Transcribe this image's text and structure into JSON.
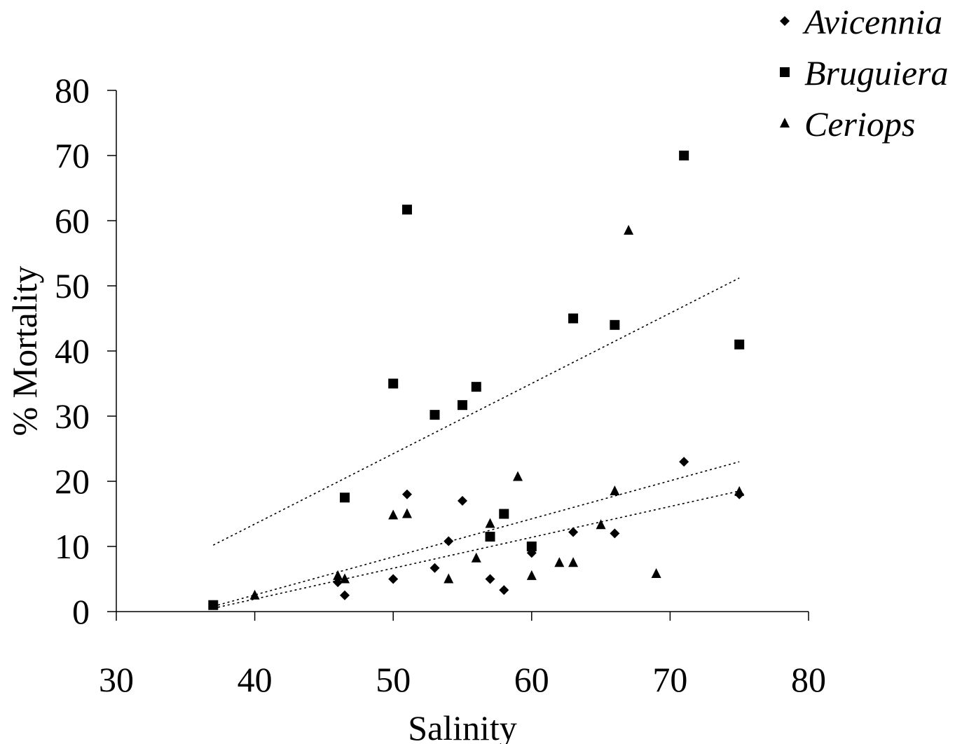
{
  "chart_data": {
    "type": "scatter",
    "title": "",
    "xlabel": "Salinity",
    "ylabel": "% Mortality",
    "xlim": [
      30,
      80
    ],
    "ylim": [
      0,
      80
    ],
    "xticks": [
      30,
      40,
      50,
      60,
      70,
      80
    ],
    "yticks": [
      0,
      10,
      20,
      30,
      40,
      50,
      60,
      70,
      80
    ],
    "grid": false,
    "legend_position": "top-right",
    "series": [
      {
        "name": "Avicennia",
        "marker": "diamond",
        "color": "#000000",
        "points": [
          [
            37,
            1
          ],
          [
            46,
            4.5
          ],
          [
            46.5,
            2.5
          ],
          [
            50,
            5
          ],
          [
            51,
            18
          ],
          [
            53,
            6.7
          ],
          [
            54,
            10.8
          ],
          [
            55,
            17
          ],
          [
            57,
            5
          ],
          [
            58,
            3.3
          ],
          [
            60,
            9
          ],
          [
            63,
            12.2
          ],
          [
            66,
            12
          ],
          [
            71,
            23
          ],
          [
            75,
            18
          ]
        ],
        "trendline": {
          "style": "dotted",
          "x": [
            37,
            75
          ],
          "y": [
            0.8,
            23
          ]
        }
      },
      {
        "name": "Bruguiera",
        "marker": "square",
        "color": "#000000",
        "points": [
          [
            37,
            1
          ],
          [
            46.5,
            17.5
          ],
          [
            50,
            35
          ],
          [
            51,
            61.7
          ],
          [
            53,
            30.2
          ],
          [
            55,
            31.7
          ],
          [
            56,
            34.5
          ],
          [
            57,
            11.5
          ],
          [
            58,
            15
          ],
          [
            60,
            10
          ],
          [
            63,
            45
          ],
          [
            66,
            44
          ],
          [
            71,
            70
          ],
          [
            75,
            41
          ]
        ],
        "trendline": {
          "style": "dotted",
          "x": [
            37,
            75
          ],
          "y": [
            10.2,
            51.2
          ]
        }
      },
      {
        "name": "Ceriops",
        "marker": "triangle",
        "color": "#000000",
        "points": [
          [
            40,
            2.5
          ],
          [
            46,
            5.5
          ],
          [
            46.5,
            5
          ],
          [
            50,
            14.8
          ],
          [
            51,
            15
          ],
          [
            54,
            5
          ],
          [
            56,
            8.2
          ],
          [
            57,
            13.5
          ],
          [
            59,
            20.7
          ],
          [
            60,
            5.5
          ],
          [
            62,
            7.5
          ],
          [
            63,
            7.5
          ],
          [
            65,
            13.3
          ],
          [
            66,
            18.5
          ],
          [
            67,
            58.5
          ],
          [
            69,
            5.8
          ],
          [
            75,
            18.4
          ]
        ],
        "trendline": {
          "style": "dotted",
          "x": [
            37,
            75
          ],
          "y": [
            0.5,
            18.5
          ]
        }
      }
    ]
  }
}
